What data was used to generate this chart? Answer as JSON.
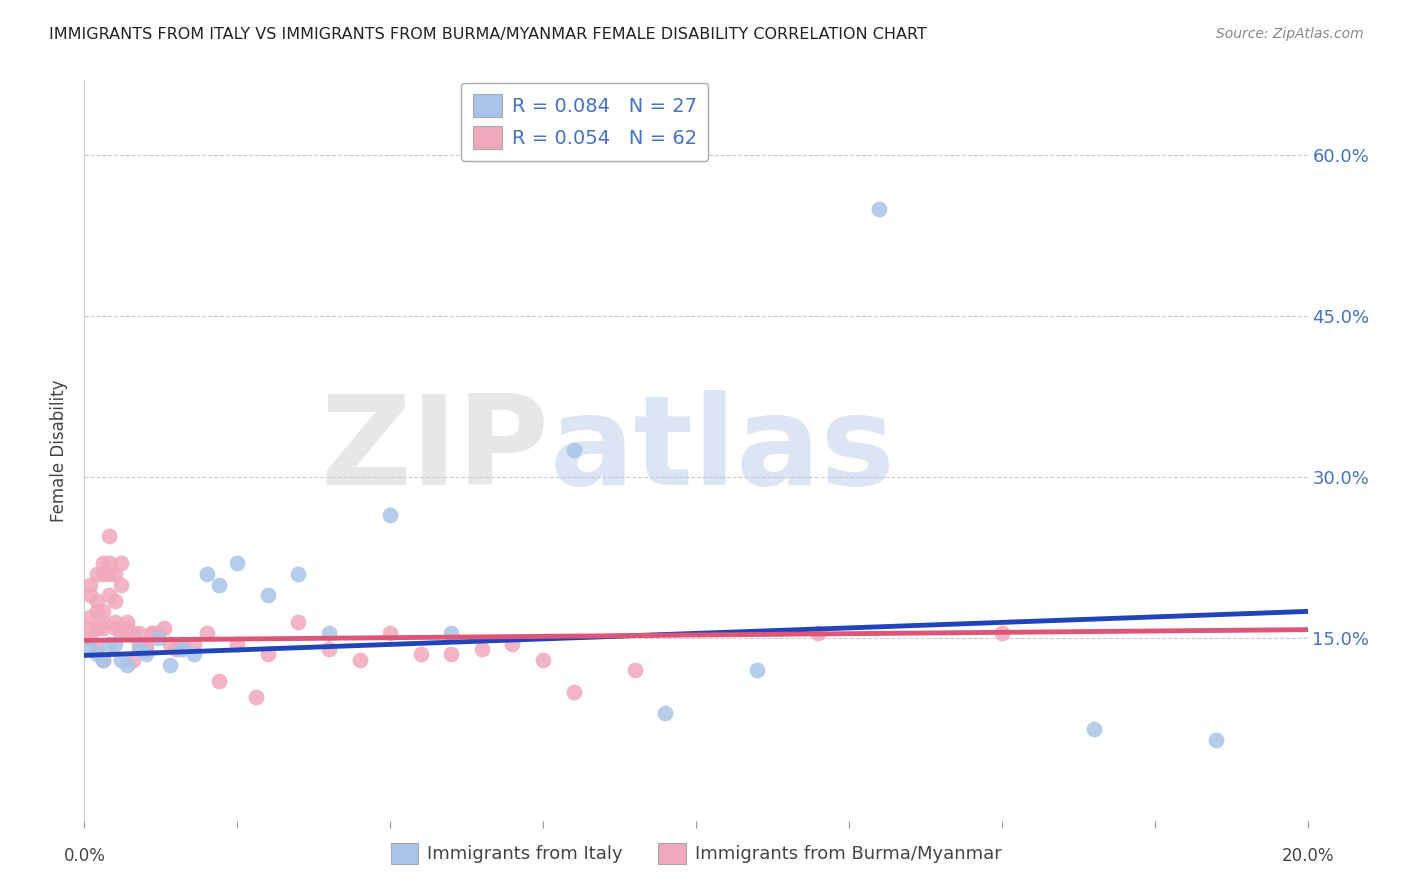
{
  "title": "IMMIGRANTS FROM ITALY VS IMMIGRANTS FROM BURMA/MYANMAR FEMALE DISABILITY CORRELATION CHART",
  "source": "Source: ZipAtlas.com",
  "ylabel": "Female Disability",
  "ytick_labels": [
    "60.0%",
    "45.0%",
    "30.0%",
    "15.0%"
  ],
  "ytick_values": [
    0.6,
    0.45,
    0.3,
    0.15
  ],
  "xlim": [
    0.0,
    0.2
  ],
  "ylim": [
    -0.02,
    0.67
  ],
  "legend_italy_R": "R = 0.084",
  "legend_italy_N": "N = 27",
  "legend_burma_R": "R = 0.054",
  "legend_burma_N": "N = 62",
  "italy_color": "#a8c4e8",
  "burma_color": "#f0a8bc",
  "italy_line_color": "#2244bb",
  "burma_line_color": "#dd5577",
  "italy_x": [
    0.001,
    0.002,
    0.003,
    0.004,
    0.005,
    0.006,
    0.007,
    0.009,
    0.01,
    0.012,
    0.014,
    0.016,
    0.018,
    0.02,
    0.022,
    0.025,
    0.03,
    0.035,
    0.04,
    0.05,
    0.06,
    0.08,
    0.095,
    0.11,
    0.13,
    0.165,
    0.185
  ],
  "italy_y": [
    0.14,
    0.135,
    0.13,
    0.145,
    0.145,
    0.13,
    0.125,
    0.14,
    0.135,
    0.15,
    0.125,
    0.14,
    0.135,
    0.21,
    0.2,
    0.22,
    0.19,
    0.21,
    0.155,
    0.265,
    0.155,
    0.325,
    0.08,
    0.12,
    0.55,
    0.065,
    0.055
  ],
  "burma_x": [
    0.001,
    0.001,
    0.001,
    0.001,
    0.001,
    0.002,
    0.002,
    0.002,
    0.002,
    0.002,
    0.003,
    0.003,
    0.003,
    0.003,
    0.003,
    0.003,
    0.004,
    0.004,
    0.004,
    0.004,
    0.005,
    0.005,
    0.005,
    0.005,
    0.006,
    0.006,
    0.006,
    0.007,
    0.007,
    0.007,
    0.008,
    0.008,
    0.009,
    0.009,
    0.01,
    0.01,
    0.011,
    0.011,
    0.012,
    0.013,
    0.014,
    0.015,
    0.016,
    0.018,
    0.02,
    0.022,
    0.025,
    0.028,
    0.03,
    0.035,
    0.04,
    0.045,
    0.05,
    0.055,
    0.06,
    0.065,
    0.07,
    0.075,
    0.08,
    0.09,
    0.12,
    0.15
  ],
  "burma_y": [
    0.15,
    0.17,
    0.16,
    0.19,
    0.2,
    0.14,
    0.16,
    0.185,
    0.21,
    0.175,
    0.13,
    0.21,
    0.22,
    0.16,
    0.165,
    0.175,
    0.245,
    0.21,
    0.19,
    0.22,
    0.165,
    0.185,
    0.21,
    0.16,
    0.155,
    0.2,
    0.22,
    0.165,
    0.16,
    0.155,
    0.13,
    0.155,
    0.155,
    0.145,
    0.145,
    0.14,
    0.155,
    0.155,
    0.155,
    0.16,
    0.145,
    0.14,
    0.145,
    0.145,
    0.155,
    0.11,
    0.145,
    0.095,
    0.135,
    0.165,
    0.14,
    0.13,
    0.155,
    0.135,
    0.135,
    0.14,
    0.145,
    0.13,
    0.1,
    0.12,
    0.155,
    0.155
  ],
  "watermark_zip": "ZIP",
  "watermark_atlas": "atlas",
  "background_color": "#ffffff",
  "grid_color": "#cccccc"
}
